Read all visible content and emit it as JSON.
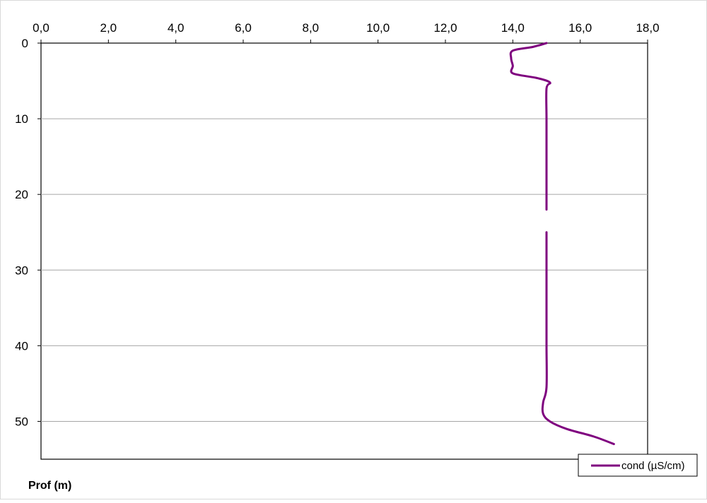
{
  "chart_data": {
    "type": "line",
    "orientation": "depth-profile",
    "title": "",
    "xlabel": "",
    "ylabel": "Prof (m)",
    "x_axis_position": "top",
    "y_axis_inverted": true,
    "xlim": [
      0,
      18
    ],
    "ylim": [
      0,
      55
    ],
    "x_ticks": [
      0,
      2,
      4,
      6,
      8,
      10,
      12,
      14,
      16,
      18
    ],
    "x_tick_labels": [
      "0,0",
      "2,0",
      "4,0",
      "6,0",
      "8,0",
      "10,0",
      "12,0",
      "14,0",
      "16,0",
      "18,0"
    ],
    "y_ticks": [
      0,
      10,
      20,
      30,
      40,
      50
    ],
    "y_tick_labels": [
      "0",
      "10",
      "20",
      "30",
      "40",
      "50"
    ],
    "grid": "horizontal",
    "legend_position": "bottom-right",
    "series": [
      {
        "name": "cond (µS/cm)",
        "color": "#7f007f",
        "segments": [
          [
            {
              "x": 15.0,
              "y": 0
            },
            {
              "x": 14.6,
              "y": 0.5
            },
            {
              "x": 14.0,
              "y": 1.0
            },
            {
              "x": 13.95,
              "y": 2.0
            },
            {
              "x": 14.0,
              "y": 3.0
            },
            {
              "x": 14.0,
              "y": 4.0
            },
            {
              "x": 14.7,
              "y": 4.6
            },
            {
              "x": 15.1,
              "y": 5.2
            },
            {
              "x": 15.0,
              "y": 6.0
            },
            {
              "x": 15.0,
              "y": 10.0
            },
            {
              "x": 15.0,
              "y": 15.0
            },
            {
              "x": 15.0,
              "y": 20.0
            },
            {
              "x": 15.0,
              "y": 22.0
            }
          ],
          [
            {
              "x": 15.0,
              "y": 25.0
            },
            {
              "x": 15.0,
              "y": 30.0
            },
            {
              "x": 15.0,
              "y": 35.0
            },
            {
              "x": 15.0,
              "y": 40.0
            },
            {
              "x": 15.0,
              "y": 45.5
            },
            {
              "x": 14.9,
              "y": 47.5
            },
            {
              "x": 14.9,
              "y": 49.0
            },
            {
              "x": 15.1,
              "y": 50.0
            },
            {
              "x": 15.6,
              "y": 51.0
            },
            {
              "x": 16.4,
              "y": 52.0
            },
            {
              "x": 17.0,
              "y": 53.0
            }
          ]
        ]
      }
    ]
  }
}
